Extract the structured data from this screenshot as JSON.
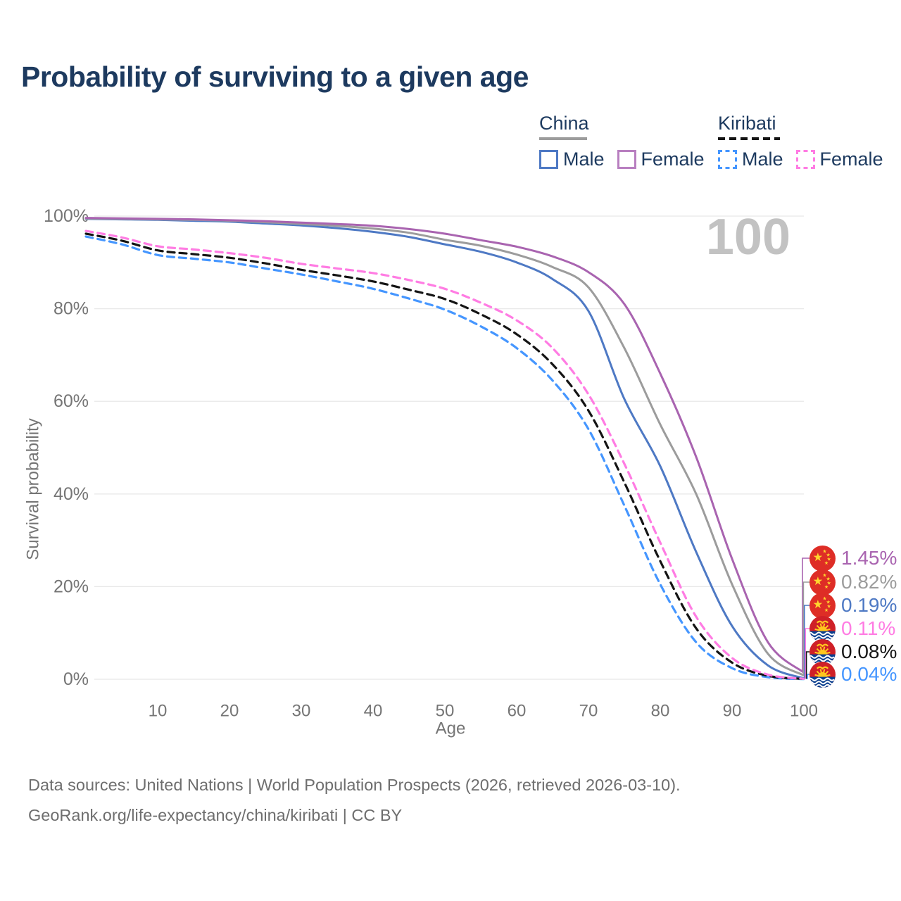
{
  "title": "Probability of surviving to a given age",
  "age_indicator": "100",
  "legend": {
    "china": {
      "header": "China",
      "male_label": "Male",
      "female_label": "Female"
    },
    "kiribati": {
      "header": "Kiribati",
      "male_label": "Male",
      "female_label": "Female"
    }
  },
  "colors": {
    "china_male": "#4e79c4",
    "china_total": "#9c9c9c",
    "china_female": "#a964b0",
    "kiribati_male": "#4596ff",
    "kiribati_total": "#141414",
    "kiribati_female": "#ff7ce3",
    "title_text": "#1d3a5f",
    "axis_text": "#757575",
    "gridline": "#e8e8e8",
    "watermark": "#c2c2c2",
    "footer_text": "#6e6e6e"
  },
  "chart_data": {
    "type": "line",
    "title": "Probability of surviving to a given age",
    "xlabel": "Age",
    "ylabel": "Survival probability",
    "xlim": [
      0,
      100
    ],
    "ylim": [
      0,
      100
    ],
    "grid": "horizontal-only",
    "legend_position": "top-right",
    "x_ticks": [
      10,
      20,
      30,
      40,
      50,
      60,
      70,
      80,
      90,
      100
    ],
    "y_ticks": [
      {
        "value": 100,
        "label": "100%"
      },
      {
        "value": 80,
        "label": "80%"
      },
      {
        "value": 60,
        "label": "60%"
      },
      {
        "value": 40,
        "label": "40%"
      },
      {
        "value": 20,
        "label": "20%"
      },
      {
        "value": 0,
        "label": "0%"
      }
    ],
    "x": [
      0,
      5,
      10,
      15,
      20,
      25,
      30,
      35,
      40,
      45,
      50,
      55,
      60,
      65,
      70,
      75,
      80,
      85,
      90,
      95,
      100
    ],
    "series": [
      {
        "name": "China Male",
        "country": "China",
        "sex": "Male",
        "line_style": "solid",
        "color": "#4e79c4",
        "values": [
          99.4,
          99.3,
          99.2,
          99.0,
          98.8,
          98.4,
          98.0,
          97.4,
          96.6,
          95.5,
          93.9,
          92.3,
          90.0,
          86.4,
          79.5,
          60.5,
          46.0,
          27.5,
          11.5,
          3.0,
          0.19
        ]
      },
      {
        "name": "China",
        "country": "China",
        "sex": "Both",
        "line_style": "solid",
        "color": "#9c9c9c",
        "values": [
          99.5,
          99.4,
          99.3,
          99.2,
          99.0,
          98.7,
          98.3,
          97.9,
          97.3,
          96.4,
          94.9,
          93.6,
          91.7,
          89.0,
          84.6,
          71.5,
          55.0,
          40.0,
          20.5,
          5.5,
          0.82
        ]
      },
      {
        "name": "China Female",
        "country": "China",
        "sex": "Female",
        "line_style": "solid",
        "color": "#a964b0",
        "values": [
          99.6,
          99.5,
          99.4,
          99.3,
          99.1,
          98.9,
          98.6,
          98.3,
          97.9,
          97.2,
          96.2,
          94.8,
          93.4,
          91.3,
          87.9,
          81.0,
          66.0,
          48.0,
          26.0,
          8.0,
          1.45
        ]
      },
      {
        "name": "Kiribati Male",
        "country": "Kiribati",
        "sex": "Male",
        "line_style": "dashed",
        "color": "#4596ff",
        "values": [
          95.6,
          93.9,
          91.6,
          90.8,
          90.0,
          88.7,
          87.4,
          85.9,
          84.3,
          82.2,
          79.8,
          76.2,
          71.5,
          64.5,
          54.0,
          37.5,
          20.5,
          8.0,
          2.4,
          0.45,
          0.04
        ]
      },
      {
        "name": "Kiribati",
        "country": "Kiribati",
        "sex": "Both",
        "line_style": "dashed",
        "color": "#141414",
        "values": [
          96.2,
          94.7,
          92.6,
          91.8,
          91.0,
          89.8,
          88.4,
          87.2,
          85.9,
          84.1,
          82.1,
          78.8,
          74.5,
          68.0,
          58.0,
          42.5,
          25.5,
          11.0,
          3.6,
          0.75,
          0.08
        ]
      },
      {
        "name": "Kiribati Female",
        "country": "Kiribati",
        "sex": "Female",
        "line_style": "dashed",
        "color": "#ff7ce3",
        "values": [
          96.8,
          95.4,
          93.5,
          92.8,
          92.0,
          91.0,
          89.7,
          88.7,
          87.7,
          86.2,
          84.3,
          81.3,
          77.5,
          71.5,
          61.5,
          46.5,
          29.5,
          13.5,
          4.6,
          1.0,
          0.11
        ]
      }
    ],
    "end_labels": [
      {
        "series": "China Female",
        "flag": "china-flag",
        "value_label": "1.45%",
        "value": 1.45,
        "color": "#a964b0"
      },
      {
        "series": "China",
        "flag": "china-flag",
        "value_label": "0.82%",
        "value": 0.82,
        "color": "#9c9c9c"
      },
      {
        "series": "China Male",
        "flag": "china-flag",
        "value_label": "0.19%",
        "value": 0.19,
        "color": "#4e79c4"
      },
      {
        "series": "Kiribati Female",
        "flag": "kiribati-flag",
        "value_label": "0.11%",
        "value": 0.11,
        "color": "#ff7ce3"
      },
      {
        "series": "Kiribati",
        "flag": "kiribati-flag",
        "value_label": "0.08%",
        "value": 0.08,
        "color": "#141414"
      },
      {
        "series": "Kiribati Male",
        "flag": "kiribati-flag",
        "value_label": "0.04%",
        "value": 0.04,
        "color": "#4596ff"
      }
    ]
  },
  "footer": {
    "line1": "Data sources: United Nations | World Population Prospects (2026, retrieved 2026-03-10).",
    "line2": "GeoRank.org/life-expectancy/china/kiribati | CC BY"
  }
}
